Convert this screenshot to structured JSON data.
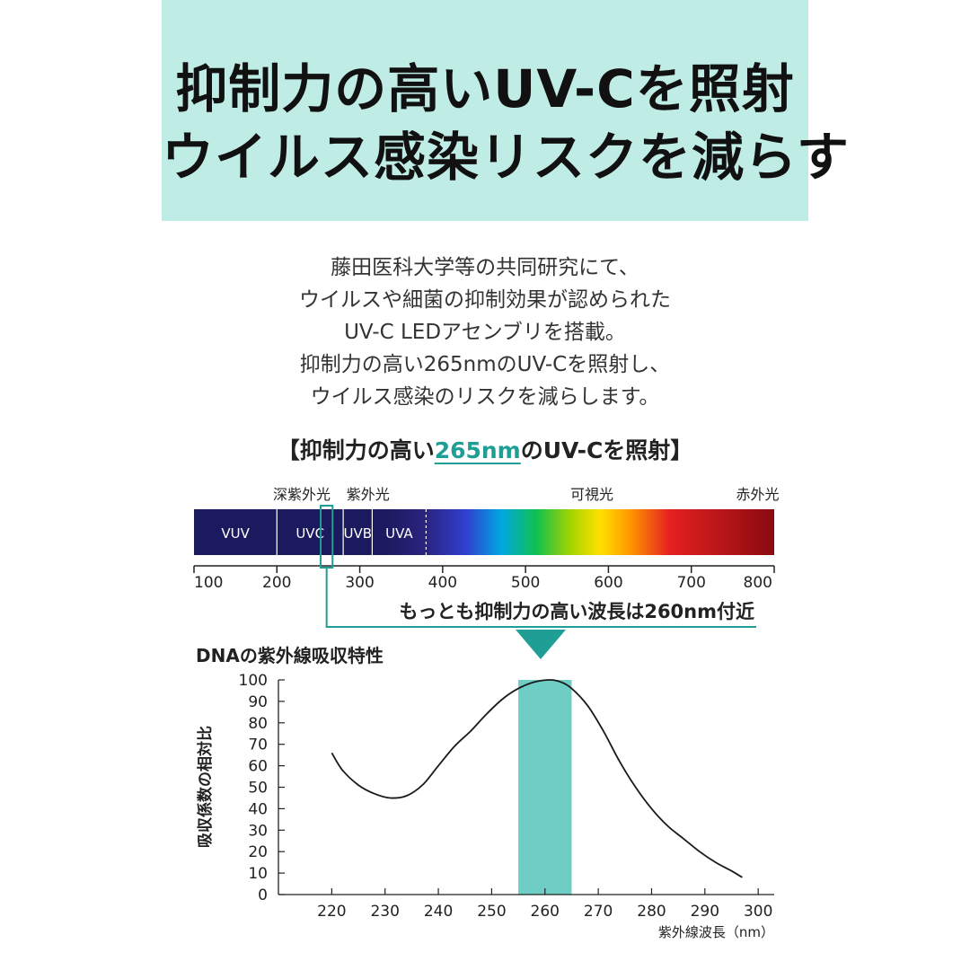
{
  "header": {
    "line1": "抑制力の高いUV-Cを照射",
    "line2": "ウイルス感染リスクを減らす"
  },
  "description": [
    "藤田医科大学等の共同研究にて、",
    "ウイルスや細菌の抑制効果が認められた",
    "UV-C LEDアセンブリを搭載。",
    "抑制力の高い265nmのUV-Cを照射し、",
    "ウイルス感染のリスクを減らします。"
  ],
  "section_title": {
    "prefix": "【抑制力の高い",
    "highlight": "265nm",
    "suffix": "のUV-Cを照射】"
  },
  "colors": {
    "accent": "#1f9e95",
    "band": "#6ecdc4",
    "hero_bg": "#c0ece6",
    "uv_dark": "#1c1a5e"
  },
  "spectrum": {
    "top_labels": [
      {
        "text": "深紫外光",
        "nm": 230
      },
      {
        "text": "紫外光",
        "nm": 310
      },
      {
        "text": "可視光",
        "nm": 580
      },
      {
        "text": "赤外光",
        "nm": 780
      }
    ],
    "segments": [
      {
        "text": "VUV",
        "from": 100,
        "to": 200
      },
      {
        "text": "UVC",
        "from": 200,
        "to": 280
      },
      {
        "text": "UVB",
        "from": 280,
        "to": 315
      },
      {
        "text": "UVA",
        "from": 315,
        "to": 380
      }
    ],
    "ticks": [
      100,
      200,
      300,
      400,
      500,
      600,
      700,
      800
    ],
    "highlight_range": [
      255,
      265
    ],
    "callout": "もっとも抑制力の高い波長は260nm付近"
  },
  "chart_data": {
    "type": "line",
    "title": "DNAの紫外線吸収特性",
    "xlabel": "紫外線波長（nm）",
    "ylabel": "吸収係数の相対比",
    "xlim": [
      210,
      303
    ],
    "ylim": [
      0,
      100
    ],
    "xticks": [
      220,
      230,
      240,
      250,
      260,
      270,
      280,
      290,
      300
    ],
    "yticks": [
      0,
      10,
      20,
      30,
      40,
      50,
      60,
      70,
      80,
      90,
      100
    ],
    "band": [
      255,
      265
    ],
    "grid": false,
    "series": [
      {
        "x": [
          220,
          222,
          225,
          228,
          231,
          234,
          237,
          240,
          243,
          246,
          249,
          252,
          255,
          258,
          261,
          263,
          265,
          268,
          271,
          274,
          277,
          280,
          283,
          286,
          289,
          292,
          295,
          297
        ],
        "values": [
          66,
          58,
          51,
          47,
          45,
          46,
          51,
          60,
          69,
          76,
          84,
          91,
          96,
          99,
          100,
          99,
          96,
          88,
          76,
          62,
          50,
          40,
          32,
          26,
          20,
          15,
          11,
          8
        ]
      }
    ]
  }
}
